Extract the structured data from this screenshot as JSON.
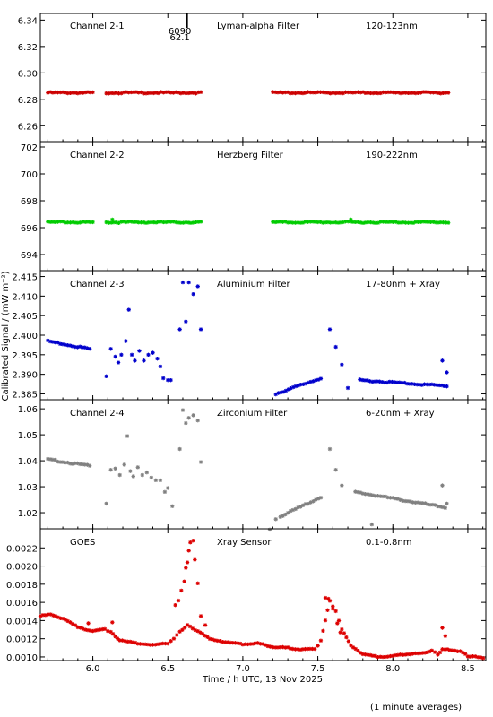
{
  "figure": {
    "xlabel": "Time / h UTC, 13 Nov 2025",
    "ylabel": "Calibrated Signal / (mW m⁻²)",
    "footnote": "(1 minute averages)",
    "xlim": [
      5.65,
      8.62
    ],
    "xticks": [
      "6.0",
      "6.5",
      "7.0",
      "7.5",
      "8.0",
      "8.5"
    ],
    "xtick_values": [
      6.0,
      6.5,
      7.0,
      7.5,
      8.0,
      8.5
    ],
    "marker": "asterisk"
  },
  "chart_data": [
    {
      "type": "scatter",
      "channel": "Channel 2-1",
      "filter": "Lyman-alpha Filter",
      "band": "120-123nm",
      "color": "#cc0000",
      "ylim": [
        6.248,
        6.345
      ],
      "yticks": [
        "6.26",
        "6.28",
        "6.30",
        "6.32",
        "6.34"
      ],
      "ytick_values": [
        6.26,
        6.28,
        6.3,
        6.32,
        6.34
      ],
      "annotation": [
        "6090",
        "62.1"
      ],
      "annotation_x": 6.58,
      "segments": [
        {
          "x_start": 5.7,
          "x_end": 6.0,
          "base": [
            6.285,
            6.285
          ]
        },
        {
          "x_start": 6.09,
          "x_end": 6.72,
          "base": [
            6.285,
            6.285
          ]
        },
        {
          "x_start": 7.2,
          "x_end": 8.37,
          "base": [
            6.285,
            6.285
          ]
        }
      ],
      "outliers": []
    },
    {
      "type": "scatter",
      "channel": "Channel 2-2",
      "filter": "Herzberg Filter",
      "band": "190-222nm",
      "color": "#00cc00",
      "ylim": [
        692.8,
        702.4
      ],
      "yticks": [
        "694",
        "696",
        "698",
        "700",
        "702"
      ],
      "ytick_values": [
        694,
        696,
        698,
        700,
        702
      ],
      "segments": [
        {
          "x_start": 5.7,
          "x_end": 6.0,
          "base": [
            696.4,
            696.4
          ]
        },
        {
          "x_start": 6.09,
          "x_end": 6.72,
          "base": [
            696.4,
            696.4
          ]
        },
        {
          "x_start": 7.2,
          "x_end": 8.37,
          "base": [
            696.4,
            696.4
          ]
        }
      ],
      "outliers": [
        [
          6.13,
          696.6
        ],
        [
          7.72,
          696.6
        ]
      ]
    },
    {
      "type": "scatter",
      "channel": "Channel 2-3",
      "filter": "Aluminium Filter",
      "band": "17-80nm + Xray",
      "color": "#0000cc",
      "ylim": [
        2.3835,
        2.4165
      ],
      "yticks": [
        "2.385",
        "2.390",
        "2.395",
        "2.400",
        "2.405",
        "2.410",
        "2.415"
      ],
      "ytick_values": [
        2.385,
        2.39,
        2.395,
        2.4,
        2.405,
        2.41,
        2.415
      ],
      "segments": [
        {
          "x_start": 5.7,
          "x_end": 5.98,
          "base": [
            2.3985,
            2.3965
          ]
        },
        {
          "x_start": 7.22,
          "x_end": 7.52,
          "base": [
            2.385,
            2.389
          ]
        },
        {
          "x_start": 7.78,
          "x_end": 8.36,
          "base": [
            2.3885,
            2.387
          ]
        }
      ],
      "outliers": [
        [
          6.09,
          2.3895
        ],
        [
          6.12,
          2.3965
        ],
        [
          6.15,
          2.3945
        ],
        [
          6.17,
          2.393
        ],
        [
          6.19,
          2.395
        ],
        [
          6.22,
          2.3985
        ],
        [
          6.24,
          2.4065
        ],
        [
          6.26,
          2.395
        ],
        [
          6.28,
          2.3935
        ],
        [
          6.31,
          2.396
        ],
        [
          6.34,
          2.3935
        ],
        [
          6.37,
          2.395
        ],
        [
          6.4,
          2.3955
        ],
        [
          6.43,
          2.394
        ],
        [
          6.45,
          2.392
        ],
        [
          6.47,
          2.389
        ],
        [
          6.5,
          2.3885
        ],
        [
          6.52,
          2.3885
        ],
        [
          6.58,
          2.4015
        ],
        [
          6.6,
          2.4135
        ],
        [
          6.62,
          2.4035
        ],
        [
          6.64,
          2.4135
        ],
        [
          6.67,
          2.4105
        ],
        [
          6.7,
          2.4125
        ],
        [
          6.72,
          2.4015
        ],
        [
          7.58,
          2.4015
        ],
        [
          7.62,
          2.397
        ],
        [
          7.66,
          2.3925
        ],
        [
          7.7,
          2.3865
        ],
        [
          8.33,
          2.3935
        ],
        [
          8.36,
          2.3905
        ]
      ]
    },
    {
      "type": "scatter",
      "channel": "Channel 2-4",
      "filter": "Zirconium Filter",
      "band": "6-20nm + Xray",
      "color": "#808080",
      "ylim": [
        1.0138,
        1.0635
      ],
      "yticks": [
        "1.02",
        "1.03",
        "1.04",
        "1.05",
        "1.06"
      ],
      "ytick_values": [
        1.02,
        1.03,
        1.04,
        1.05,
        1.06
      ],
      "segments": [
        {
          "x_start": 5.7,
          "x_end": 5.98,
          "base": [
            1.0405,
            1.038
          ]
        },
        {
          "x_start": 7.25,
          "x_end": 7.52,
          "base": [
            1.0185,
            1.026
          ]
        },
        {
          "x_start": 7.75,
          "x_end": 8.35,
          "base": [
            1.028,
            1.022
          ]
        }
      ],
      "outliers": [
        [
          6.09,
          1.0235
        ],
        [
          6.12,
          1.0365
        ],
        [
          6.15,
          1.037
        ],
        [
          6.18,
          1.0345
        ],
        [
          6.21,
          1.0385
        ],
        [
          6.23,
          1.0495
        ],
        [
          6.25,
          1.036
        ],
        [
          6.27,
          1.034
        ],
        [
          6.3,
          1.0375
        ],
        [
          6.33,
          1.0345
        ],
        [
          6.36,
          1.0355
        ],
        [
          6.39,
          1.0335
        ],
        [
          6.42,
          1.0325
        ],
        [
          6.45,
          1.0325
        ],
        [
          6.48,
          1.028
        ],
        [
          6.5,
          1.0295
        ],
        [
          6.53,
          1.0225
        ],
        [
          6.58,
          1.0445
        ],
        [
          6.6,
          1.0595
        ],
        [
          6.62,
          1.0545
        ],
        [
          6.64,
          1.0565
        ],
        [
          6.67,
          1.0575
        ],
        [
          6.7,
          1.0555
        ],
        [
          6.72,
          1.0395
        ],
        [
          7.18,
          1.0135
        ],
        [
          7.22,
          1.0175
        ],
        [
          7.58,
          1.0445
        ],
        [
          7.62,
          1.0365
        ],
        [
          7.66,
          1.0305
        ],
        [
          7.86,
          1.0155
        ],
        [
          8.33,
          1.0305
        ],
        [
          8.36,
          1.0235
        ]
      ]
    },
    {
      "type": "scatter",
      "channel": "GOES",
      "filter": "Xray Sensor",
      "band": "0.1-0.8nm",
      "color": "#dd0000",
      "ylim": [
        0.00096,
        0.00241
      ],
      "yticks": [
        "0.0010",
        "0.0012",
        "0.0014",
        "0.0016",
        "0.0018",
        "0.0020",
        "0.0022"
      ],
      "ytick_values": [
        0.001,
        0.0012,
        0.0014,
        0.0016,
        0.0018,
        0.002,
        0.0022
      ],
      "series_points": [
        [
          5.65,
          0.00145
        ],
        [
          5.72,
          0.00147
        ],
        [
          5.8,
          0.00142
        ],
        [
          5.9,
          0.00133
        ],
        [
          6.0,
          0.00128
        ],
        [
          6.08,
          0.00131
        ],
        [
          6.12,
          0.00127
        ],
        [
          6.18,
          0.00118
        ],
        [
          6.3,
          0.00115
        ],
        [
          6.4,
          0.00113
        ],
        [
          6.5,
          0.00115
        ],
        [
          6.54,
          0.0012
        ],
        [
          6.58,
          0.00128
        ],
        [
          6.63,
          0.00135
        ],
        [
          6.7,
          0.00128
        ],
        [
          6.78,
          0.0012
        ],
        [
          6.9,
          0.00116
        ],
        [
          7.0,
          0.00114
        ],
        [
          7.1,
          0.00115
        ],
        [
          7.2,
          0.00111
        ],
        [
          7.3,
          0.0011
        ],
        [
          7.4,
          0.00108
        ],
        [
          7.48,
          0.00109
        ],
        [
          7.5,
          0.00112
        ],
        [
          7.52,
          0.00118
        ],
        [
          7.55,
          0.0014
        ],
        [
          7.58,
          0.00162
        ],
        [
          7.62,
          0.0015
        ],
        [
          7.66,
          0.0013
        ],
        [
          7.72,
          0.00113
        ],
        [
          7.8,
          0.00103
        ],
        [
          7.9,
          0.001
        ],
        [
          8.0,
          0.00101
        ],
        [
          8.1,
          0.00103
        ],
        [
          8.2,
          0.00104
        ],
        [
          8.26,
          0.00107
        ],
        [
          8.3,
          0.00103
        ],
        [
          8.33,
          0.00108
        ],
        [
          8.38,
          0.00108
        ],
        [
          8.45,
          0.00106
        ],
        [
          8.5,
          0.00101
        ],
        [
          8.55,
          0.001
        ],
        [
          8.62,
          0.00099
        ]
      ],
      "outliers": [
        [
          5.97,
          0.00137
        ],
        [
          6.13,
          0.00138
        ],
        [
          6.55,
          0.00157
        ],
        [
          6.57,
          0.00162
        ],
        [
          6.59,
          0.00173
        ],
        [
          6.61,
          0.00183
        ],
        [
          6.62,
          0.00198
        ],
        [
          6.63,
          0.00204
        ],
        [
          6.64,
          0.00217
        ],
        [
          6.65,
          0.00226
        ],
        [
          6.67,
          0.00228
        ],
        [
          6.68,
          0.00207
        ],
        [
          6.7,
          0.00181
        ],
        [
          6.72,
          0.00145
        ],
        [
          6.75,
          0.00135
        ],
        [
          7.55,
          0.00165
        ],
        [
          7.57,
          0.00164
        ],
        [
          7.6,
          0.00153
        ],
        [
          7.63,
          0.00137
        ],
        [
          7.65,
          0.00127
        ],
        [
          8.33,
          0.00132
        ],
        [
          8.35,
          0.00123
        ]
      ]
    }
  ]
}
